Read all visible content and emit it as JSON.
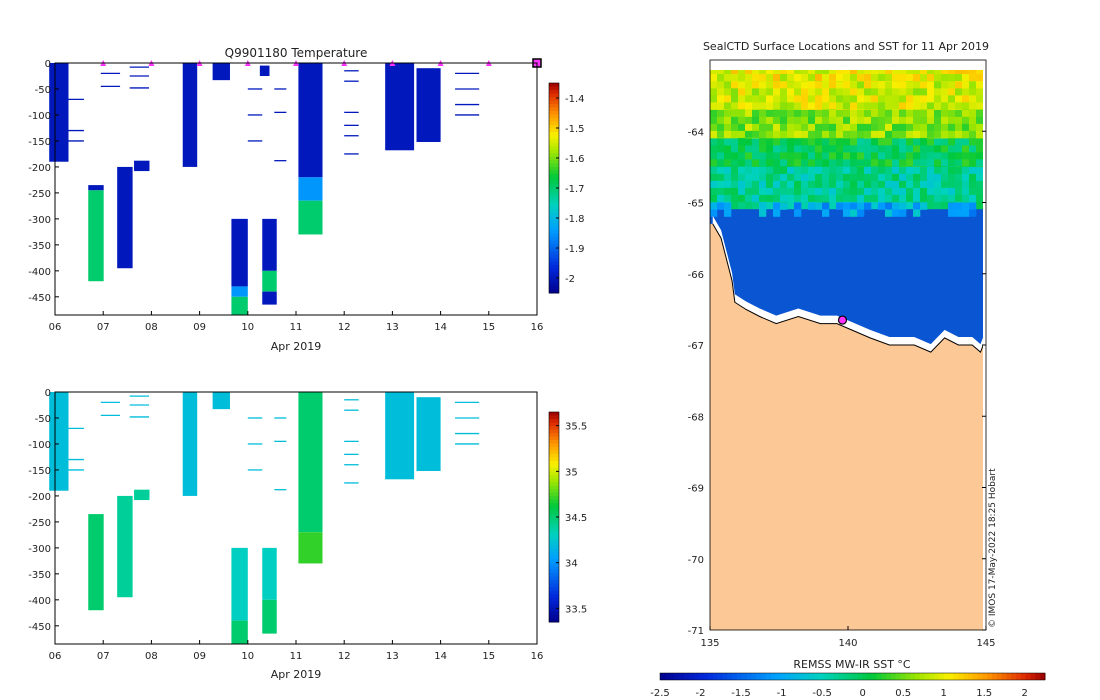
{
  "chart_data": [
    {
      "type": "heatmap",
      "panel": "temperature-profiles",
      "title": "Q9901180  Temperature",
      "xlabel": "Apr 2019",
      "ylabel": "",
      "x_ticks": [
        "06",
        "07",
        "08",
        "09",
        "10",
        "11",
        "12",
        "13",
        "14",
        "15",
        "16"
      ],
      "x_range": [
        6,
        16
      ],
      "y_ticks": [
        0,
        -50,
        -100,
        -150,
        -200,
        -250,
        -300,
        -350,
        -400,
        -450
      ],
      "y_range": [
        0,
        -485
      ],
      "colorbar": {
        "min": -2.05,
        "max": -1.35,
        "ticks": [
          -1.4,
          -1.5,
          -1.6,
          -1.7,
          -1.8,
          -1.9,
          -2
        ]
      },
      "surface_markers_day": [
        7,
        8,
        9,
        10,
        11,
        12,
        13,
        14,
        15
      ],
      "highlight_marker_day": 16,
      "profiles": [
        {
          "day": 6.08,
          "width": 0.4,
          "bottom": -190,
          "segments": [
            [
              0,
              -190,
              -2.0
            ]
          ]
        },
        {
          "day": 6.85,
          "width": 0.32,
          "bottom": -420,
          "segments": [
            [
              -235,
              -245,
              -2.0
            ],
            [
              -245,
              -420,
              -1.7
            ]
          ]
        },
        {
          "day": 7.45,
          "width": 0.32,
          "bottom": -395,
          "segments": [
            [
              -200,
              -395,
              -2.0
            ]
          ]
        },
        {
          "day": 7.8,
          "width": 0.32,
          "bottom": -208,
          "segments": [
            [
              -188,
              -208,
              -2.0
            ]
          ]
        },
        {
          "day": 8.8,
          "width": 0.3,
          "bottom": -200,
          "segments": [
            [
              0,
              -200,
              -2.0
            ]
          ]
        },
        {
          "day": 9.45,
          "width": 0.36,
          "bottom": -33,
          "segments": [
            [
              0,
              -33,
              -2.0
            ]
          ]
        },
        {
          "day": 9.83,
          "width": 0.34,
          "bottom": -485,
          "segments": [
            [
              -300,
              -430,
              -2.0
            ],
            [
              -430,
              -450,
              -1.85
            ],
            [
              -450,
              -485,
              -1.7
            ]
          ]
        },
        {
          "day": 10.45,
          "width": 0.3,
          "bottom": -465,
          "segments": [
            [
              -300,
              -400,
              -2.0
            ],
            [
              -400,
              -440,
              -1.7
            ],
            [
              -440,
              -465,
              -2.0
            ]
          ]
        },
        {
          "day": 10.35,
          "width": 0.2,
          "bottom": -25,
          "segments": [
            [
              -5,
              -25,
              -2.0
            ]
          ]
        },
        {
          "day": 11.3,
          "width": 0.5,
          "bottom": -330,
          "segments": [
            [
              0,
              -220,
              -2.0
            ],
            [
              -220,
              -265,
              -1.85
            ],
            [
              -265,
              -330,
              -1.7
            ]
          ]
        },
        {
          "day": 13.15,
          "width": 0.6,
          "bottom": -168,
          "segments": [
            [
              0,
              -168,
              -2.0
            ]
          ]
        },
        {
          "day": 13.75,
          "width": 0.5,
          "bottom": -152,
          "segments": [
            [
              -10,
              -152,
              -2.0
            ]
          ]
        }
      ]
    },
    {
      "type": "heatmap",
      "panel": "salinity-profiles",
      "title": "",
      "xlabel": "Apr 2019",
      "ylabel": "",
      "x_ticks": [
        "06",
        "07",
        "08",
        "09",
        "10",
        "11",
        "12",
        "13",
        "14",
        "15",
        "16"
      ],
      "x_range": [
        6,
        16
      ],
      "y_ticks": [
        0,
        -50,
        -100,
        -150,
        -200,
        -250,
        -300,
        -350,
        -400,
        -450
      ],
      "y_range": [
        0,
        -485
      ],
      "colorbar": {
        "min": 33.35,
        "max": 35.65,
        "ticks": [
          35.5,
          35,
          34.5,
          34,
          33.5
        ]
      },
      "profiles": [
        {
          "day": 6.08,
          "width": 0.4,
          "bottom": -190,
          "segments": [
            [
              0,
              -190,
              34.2
            ]
          ]
        },
        {
          "day": 6.85,
          "width": 0.32,
          "bottom": -420,
          "segments": [
            [
              -235,
              -420,
              34.5
            ]
          ]
        },
        {
          "day": 7.45,
          "width": 0.32,
          "bottom": -395,
          "segments": [
            [
              -200,
              -395,
              34.4
            ]
          ]
        },
        {
          "day": 7.8,
          "width": 0.32,
          "bottom": -208,
          "segments": [
            [
              -188,
              -208,
              34.4
            ]
          ]
        },
        {
          "day": 8.8,
          "width": 0.3,
          "bottom": -200,
          "segments": [
            [
              0,
              -200,
              34.2
            ]
          ]
        },
        {
          "day": 9.45,
          "width": 0.36,
          "bottom": -33,
          "segments": [
            [
              0,
              -33,
              34.2
            ]
          ]
        },
        {
          "day": 9.83,
          "width": 0.34,
          "bottom": -485,
          "segments": [
            [
              -300,
              -440,
              34.3
            ],
            [
              -440,
              -485,
              34.5
            ]
          ]
        },
        {
          "day": 10.45,
          "width": 0.3,
          "bottom": -465,
          "segments": [
            [
              -300,
              -400,
              34.3
            ],
            [
              -400,
              -465,
              34.5
            ]
          ]
        },
        {
          "day": 11.3,
          "width": 0.5,
          "bottom": -330,
          "segments": [
            [
              0,
              -270,
              34.5
            ],
            [
              -270,
              -330,
              34.7
            ]
          ]
        },
        {
          "day": 13.15,
          "width": 0.6,
          "bottom": -168,
          "segments": [
            [
              0,
              -168,
              34.2
            ]
          ]
        },
        {
          "day": 13.75,
          "width": 0.5,
          "bottom": -152,
          "segments": [
            [
              -10,
              -152,
              34.2
            ]
          ]
        }
      ]
    },
    {
      "type": "heatmap",
      "panel": "sst-map",
      "title": "SealCTD Surface Locations and SST for 11 Apr 2019",
      "xlabel": "",
      "ylabel": "",
      "x_ticks": [
        135,
        140,
        145
      ],
      "x_range": [
        135,
        145
      ],
      "y_ticks": [
        -64,
        -65,
        -66,
        -67,
        -68,
        -69,
        -70,
        -71
      ],
      "y_range": [
        -71,
        -63
      ],
      "colorbar": {
        "label": "REMSS MW-IR SST °C",
        "min": -2.5,
        "max": 2.25,
        "ticks": [
          -2.5,
          -2,
          -1.5,
          -1,
          -0.5,
          0,
          0.5,
          1,
          1.5,
          2
        ]
      },
      "sst_bands": [
        {
          "lat_top": -63.0,
          "lat_bottom": -63.3,
          "sst": 1.0
        },
        {
          "lat_top": -63.3,
          "lat_bottom": -63.7,
          "sst": 0.9
        },
        {
          "lat_top": -63.7,
          "lat_bottom": -64.1,
          "sst": 0.6
        },
        {
          "lat_top": -64.1,
          "lat_bottom": -64.5,
          "sst": 0.0
        },
        {
          "lat_top": -64.5,
          "lat_bottom": -65.0,
          "sst": -0.3
        }
      ],
      "ice_sst": -1.8,
      "seal_location": {
        "lon": 139.8,
        "lat": -66.65
      },
      "coastline": [
        [
          135.1,
          -65.3
        ],
        [
          135.4,
          -65.5
        ],
        [
          135.6,
          -65.8
        ],
        [
          135.8,
          -66.1
        ],
        [
          135.9,
          -66.4
        ],
        [
          136.3,
          -66.5
        ],
        [
          136.8,
          -66.6
        ],
        [
          137.4,
          -66.7
        ],
        [
          138.2,
          -66.6
        ],
        [
          139.0,
          -66.7
        ],
        [
          139.6,
          -66.7
        ],
        [
          140.2,
          -66.8
        ],
        [
          140.8,
          -66.9
        ],
        [
          141.5,
          -67.0
        ],
        [
          142.4,
          -67.0
        ],
        [
          143.0,
          -67.1
        ],
        [
          143.5,
          -66.9
        ],
        [
          144.0,
          -67.0
        ],
        [
          144.5,
          -67.0
        ],
        [
          144.8,
          -67.1
        ],
        [
          145.0,
          -66.9
        ]
      ],
      "annotation": "© IMOS 17-May-2022 18:25 Hobart"
    }
  ],
  "colors": {
    "land": "#fcc996",
    "ocean_ice": "#0a56d2",
    "marker": "#ff33ff",
    "axis": "#000000"
  }
}
